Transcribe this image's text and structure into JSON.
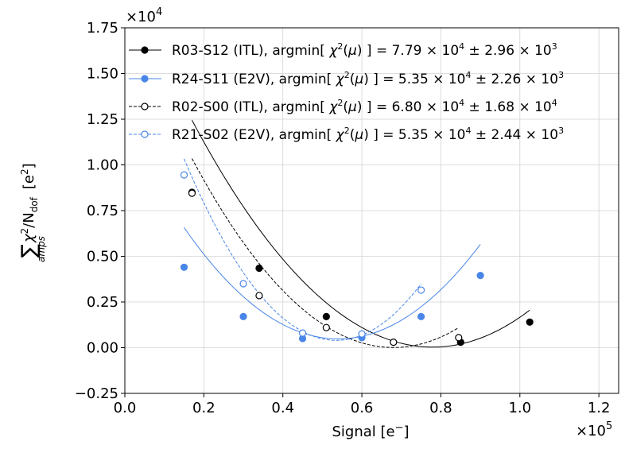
{
  "chart_data": {
    "type": "line",
    "xlabel_main": "Signal [e",
    "xlabel_sup": "−",
    "xlabel_end": "]",
    "x_multiplier": {
      "base": "×10",
      "exp": "5"
    },
    "y_multiplier": {
      "base": "×10",
      "exp": "4"
    },
    "ylabel": {
      "sum": "∑",
      "sub": "amps",
      "chi": "χ",
      "sq": "2",
      "slash": "/N",
      "dof": "dof",
      "unit": "[e",
      "unit_sup": "2",
      "unit_end": "]"
    },
    "xlim": [
      0,
      125000
    ],
    "ylim": [
      -2500,
      17500
    ],
    "x_ticks": [
      0,
      20000,
      40000,
      60000,
      80000,
      100000,
      120000
    ],
    "x_tick_labels": [
      "0.0",
      "0.2",
      "0.4",
      "0.6",
      "0.8",
      "1.0",
      "1.2"
    ],
    "y_ticks": [
      -2500,
      0,
      2500,
      5000,
      7500,
      10000,
      12500,
      15000,
      17500
    ],
    "y_tick_labels": [
      "−0.25",
      "0.00",
      "0.25",
      "0.50",
      "0.75",
      "1.00",
      "1.25",
      "1.50",
      "1.75"
    ],
    "grid": true,
    "legend_position": "top-right",
    "series": [
      {
        "name": "R03-S12 (ITL), argmin[ χ²(μ) ] = 7.79 × 10⁴ ± 2.96 × 10³",
        "label_prefix": "R03-S12 (ITL), argmin[ ",
        "label_value": "7.79 × 10",
        "label_value_exp": "4",
        "label_err": " ± 2.96 × 10",
        "label_err_exp": "3",
        "color": "#000000",
        "marker": "filled",
        "linestyle": "solid",
        "x": [
          17000,
          34000,
          51000,
          85000,
          102500
        ],
        "y": [
          8500,
          4350,
          1700,
          300,
          1400
        ],
        "fit": [
          3.347e-06,
          -0.5215,
          20344
        ]
      },
      {
        "name": "R24-S11 (E2V), argmin[ χ²(μ) ] = 5.35 × 10⁴ ± 2.26 × 10³",
        "label_prefix": "R24-S11 (E2V), argmin[ ",
        "label_value": "5.35 × 10",
        "label_value_exp": "4",
        "label_err": " ± 2.26 × 10",
        "label_err_exp": "3",
        "color": "#4a86e8",
        "marker": "filled",
        "linestyle": "solid",
        "x": [
          15000,
          30000,
          45000,
          60000,
          75000,
          90000
        ],
        "y": [
          4400,
          1700,
          500,
          550,
          1700,
          3950
        ],
        "fit": [
          4e-06,
          -0.4322,
          12155
        ]
      },
      {
        "name": "R02-S00 (ITL), argmin[ χ²(μ) ] = 6.80 × 10⁴ ± 1.68 × 10⁴",
        "label_prefix": "R02-S00 (ITL), argmin[ ",
        "label_value": "6.80 × 10",
        "label_value_exp": "4",
        "label_err": " ± 1.68 × 10",
        "label_err_exp": "4",
        "color": "#000000",
        "marker": "open",
        "linestyle": "dashed",
        "x": [
          17000,
          34000,
          51000,
          68000,
          84500
        ],
        "y": [
          8450,
          2850,
          1100,
          300,
          550
        ],
        "fit": [
          3.977e-06,
          -0.5408,
          18394
        ]
      },
      {
        "name": "R21-S02 (E2V), argmin[ χ²(μ) ] = 5.35 × 10⁴ ± 2.44 × 10³",
        "label_prefix": "R21-S02 (E2V), argmin[ ",
        "label_value": "5.35 × 10",
        "label_value_exp": "4",
        "label_err": " ± 2.44 × 10",
        "label_err_exp": "3",
        "color": "#4a86e8",
        "marker": "open",
        "linestyle": "dashed",
        "x": [
          15000,
          30000,
          45000,
          60000,
          75000
        ],
        "y": [
          9450,
          3500,
          800,
          750,
          3150
        ],
        "fit": [
          6.7e-06,
          -0.7169,
          19580
        ]
      }
    ]
  }
}
